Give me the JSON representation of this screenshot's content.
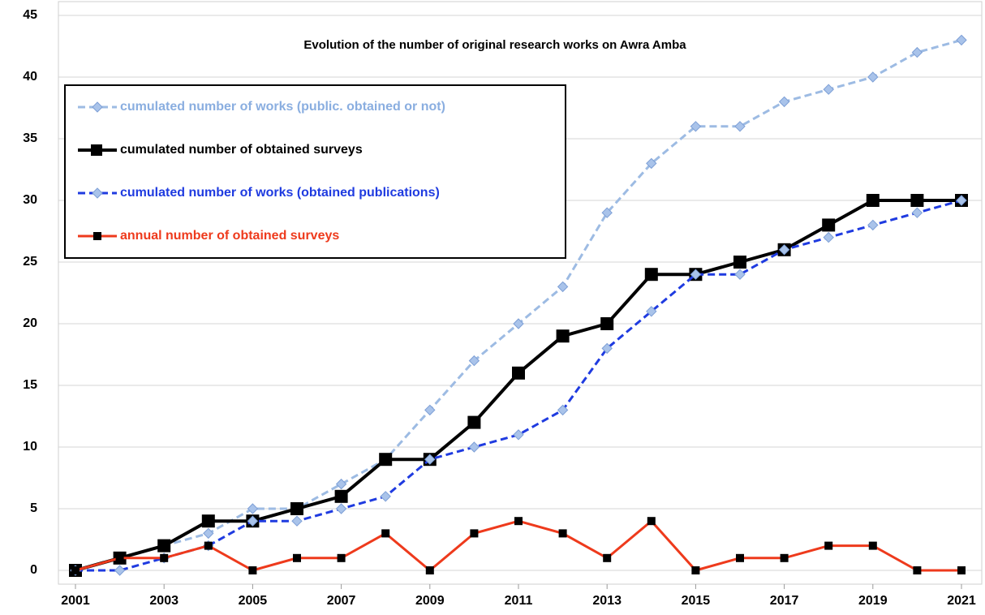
{
  "chart_data": {
    "type": "line",
    "title": "Evolution of the number of original research works on Awra Amba",
    "x": [
      2001,
      2002,
      2003,
      2004,
      2005,
      2006,
      2007,
      2008,
      2009,
      2010,
      2011,
      2012,
      2013,
      2014,
      2015,
      2016,
      2017,
      2018,
      2019,
      2020,
      2021
    ],
    "xlim": [
      2001,
      2021
    ],
    "xticks": [
      2001,
      2003,
      2005,
      2007,
      2009,
      2011,
      2013,
      2015,
      2017,
      2019,
      2021
    ],
    "ylim": [
      0,
      45
    ],
    "yticks": [
      0,
      5,
      10,
      15,
      20,
      25,
      30,
      35,
      40,
      45
    ],
    "grid": true,
    "legend": "upper left",
    "series": [
      {
        "name": "cumulated number of works (public. obtained or not)",
        "color": "#9dbbe3",
        "dash": true,
        "marker": "diamond",
        "values": [
          0,
          1,
          2,
          3,
          5,
          5,
          7,
          9,
          13,
          17,
          20,
          23,
          29,
          33,
          36,
          36,
          38,
          39,
          40,
          42,
          43
        ]
      },
      {
        "name": "cumulated number of obtained surveys",
        "color": "#000000",
        "dash": false,
        "marker": "square",
        "values": [
          0,
          1,
          2,
          4,
          4,
          5,
          6,
          9,
          9,
          12,
          16,
          19,
          20,
          24,
          24,
          25,
          26,
          28,
          30,
          30,
          30
        ]
      },
      {
        "name": "cumulated number of works (obtained publications)",
        "color": "#1f3be0",
        "dash": true,
        "marker": "diamond",
        "values": [
          0,
          0,
          1,
          2,
          4,
          4,
          5,
          6,
          9,
          10,
          11,
          13,
          18,
          21,
          24,
          24,
          26,
          27,
          28,
          29,
          30
        ]
      },
      {
        "name": "annual number of obtained surveys",
        "color": "#ee3a1c",
        "dash": false,
        "marker": "smallsquare",
        "values": [
          0,
          1,
          1,
          2,
          0,
          1,
          1,
          3,
          0,
          3,
          4,
          3,
          1,
          4,
          0,
          1,
          1,
          2,
          2,
          0,
          0
        ]
      }
    ]
  }
}
